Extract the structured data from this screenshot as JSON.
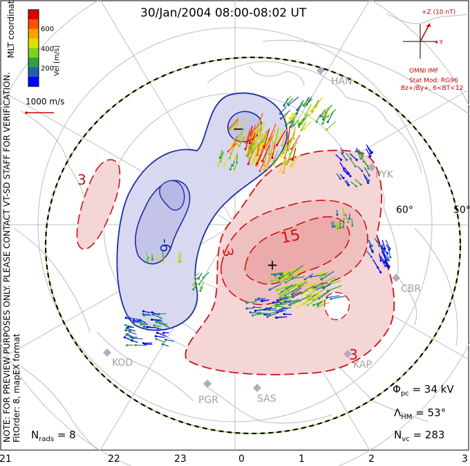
{
  "title": "30/Jan/2004 08:00-08:02 UT",
  "note_vertical": "NOTE: FOR PREVIEW PURPOSES ONLY. PLEASE CONTACT VT-SD STAFF FOR VERIFICATION.",
  "fit_order": "FitOrder: 8, mapEX format",
  "coordinates": "MLT coordinates",
  "colorbar": {
    "label": "Vel [m/s]",
    "ticks": [
      "600",
      "400",
      "200"
    ],
    "colors": [
      "#0000ff",
      "#2060b0",
      "#30a040",
      "#80d020",
      "#e0e000",
      "#ffa000",
      "#ff5000",
      "#e00000"
    ]
  },
  "scale_vector": "1000 m/s",
  "imf": {
    "label": "+Z (10 nT)",
    "y_label": "+Y",
    "source": "OMNI IMF",
    "model_line1": "Stat Mod: RG96",
    "model_line2": "Bz+/By+, 6<BT<12"
  },
  "stations": [
    "HAN",
    "PYK",
    "CBR",
    "KAP",
    "SAS",
    "PGR",
    "KOD"
  ],
  "latitude_labels": [
    "60°",
    "50°"
  ],
  "mlt_labels": [
    "21",
    "22",
    "23",
    "0",
    "1",
    "2",
    "3"
  ],
  "contours": {
    "neg_label": "-6",
    "pos_label": "15",
    "pos_small_label_1": "3",
    "pos_small_label_2": "3",
    "pos_small_label_3": "3",
    "min_marker": "−",
    "max_marker": "+"
  },
  "stats": {
    "phi_pc": "Φ",
    "phi_sub": "pc",
    "phi_value": "= 34 kV",
    "lambda": "Λ",
    "lambda_sub": "HM",
    "lambda_value": "= 53°",
    "nvc": "N",
    "nvc_sub": "vc",
    "nvc_value": "= 283",
    "nrads": "N",
    "nrads_sub": "rads",
    "nrads_value": "= 8"
  }
}
